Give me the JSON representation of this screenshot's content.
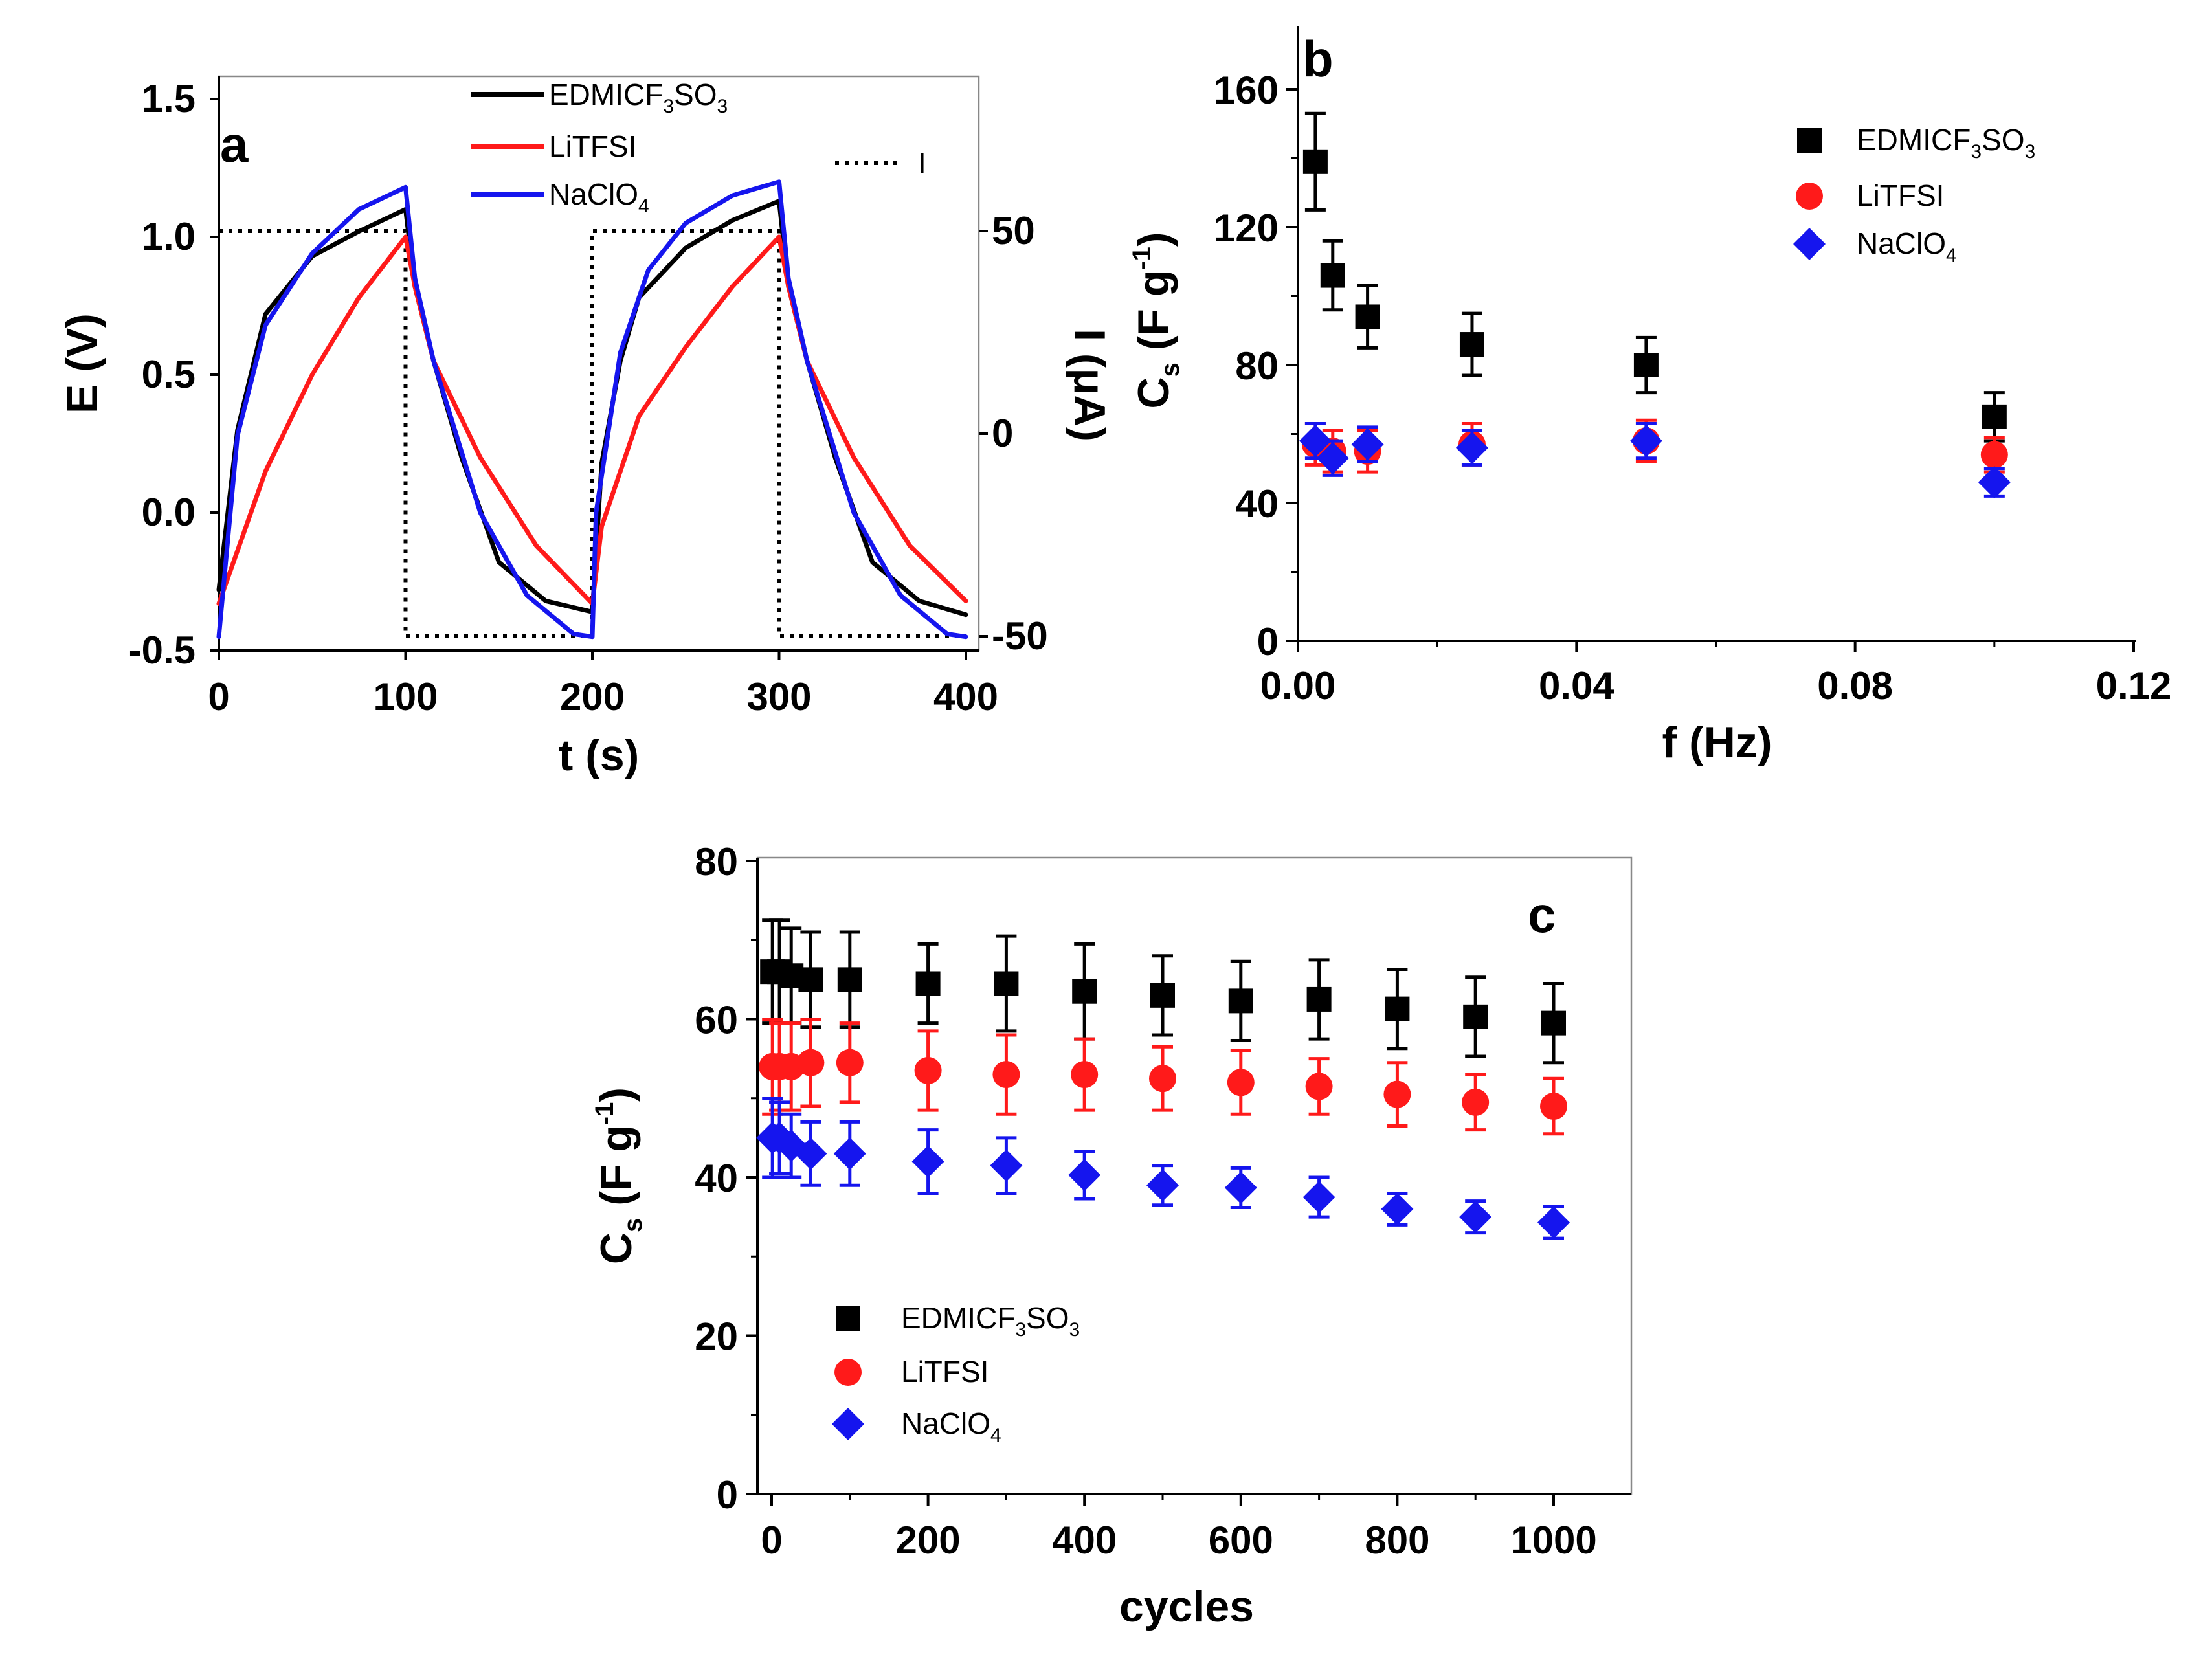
{
  "colors": {
    "black_series": "#000000",
    "red_series": "#ff1a1a",
    "blue_series": "#1515ee"
  },
  "chart_data": [
    {
      "panel": "a",
      "type": "line",
      "xlabel": "t (s)",
      "ylabel": "E (V)",
      "y2label": "I (μA)",
      "xlim": [
        0,
        400
      ],
      "ylim": [
        -0.5,
        1.5
      ],
      "y2lim": [
        -50,
        90
      ],
      "xticks": [
        "0",
        "100",
        "200",
        "300",
        "400"
      ],
      "yticks": [
        "-0.5",
        "0.0",
        "0.5",
        "1.0",
        "1.5"
      ],
      "y2ticks": [
        "-50",
        "0",
        "50"
      ],
      "legend": [
        {
          "name": "EDMICF",
          "sub1": "3",
          "mid": "SO",
          "sub2": "3",
          "color": "#000000"
        },
        {
          "name": "LiTFSI",
          "color": "#ff1a1a"
        },
        {
          "name": "NaClO",
          "sub1": "4",
          "color": "#1515ee"
        }
      ],
      "current_legend": "I",
      "current_series": {
        "name": "I",
        "x": [
          0,
          100,
          100,
          200,
          200,
          300,
          300,
          400
        ],
        "values": [
          50,
          50,
          -50,
          -50,
          50,
          50,
          -50,
          -50
        ]
      },
      "series": [
        {
          "name": "EDMICF3SO3",
          "color": "#000000",
          "x": [
            0,
            10,
            25,
            50,
            75,
            100,
            105,
            115,
            130,
            150,
            175,
            200,
            205,
            215,
            225,
            250,
            275,
            300,
            305,
            315,
            330,
            350,
            375,
            400
          ],
          "values": [
            -0.28,
            0.3,
            0.72,
            0.93,
            1.02,
            1.1,
            0.82,
            0.55,
            0.2,
            -0.18,
            -0.32,
            -0.36,
            0.18,
            0.55,
            0.78,
            0.96,
            1.06,
            1.13,
            0.82,
            0.55,
            0.2,
            -0.18,
            -0.32,
            -0.37
          ]
        },
        {
          "name": "LiTFSI",
          "color": "#ff1a1a",
          "x": [
            0,
            25,
            50,
            75,
            100,
            105,
            115,
            140,
            170,
            200,
            205,
            225,
            250,
            275,
            300,
            305,
            315,
            340,
            370,
            400
          ],
          "values": [
            -0.33,
            0.15,
            0.5,
            0.78,
            1.0,
            0.82,
            0.55,
            0.2,
            -0.12,
            -0.33,
            -0.05,
            0.35,
            0.6,
            0.82,
            1.0,
            0.82,
            0.55,
            0.2,
            -0.12,
            -0.32
          ]
        },
        {
          "name": "NaClO4",
          "color": "#1515ee",
          "x": [
            0,
            10,
            25,
            50,
            75,
            100,
            105,
            115,
            140,
            165,
            190,
            200,
            202,
            215,
            230,
            250,
            275,
            300,
            305,
            315,
            340,
            365,
            390,
            400
          ],
          "values": [
            -0.45,
            0.28,
            0.68,
            0.94,
            1.1,
            1.18,
            0.85,
            0.55,
            0.0,
            -0.3,
            -0.44,
            -0.45,
            0.0,
            0.58,
            0.88,
            1.05,
            1.15,
            1.2,
            0.85,
            0.55,
            0.0,
            -0.3,
            -0.44,
            -0.45
          ]
        }
      ]
    },
    {
      "panel": "b",
      "type": "scatter",
      "xlabel": "f (Hz)",
      "ylabel": "C",
      "ylabel_sub": "s",
      "ylabel_tail": "(F g",
      "ylabel_sup": "-1",
      "ylabel_close": ")",
      "xlim": [
        0,
        0.12
      ],
      "ylim": [
        0,
        180
      ],
      "xticks": [
        "0.00",
        "0.04",
        "0.08",
        "0.12"
      ],
      "yticks": [
        "0",
        "40",
        "80",
        "120",
        "160"
      ],
      "legend": [
        {
          "name": "EDMICF",
          "sub1": "3",
          "mid": "SO",
          "sub2": "3",
          "color": "#000000",
          "marker": "square"
        },
        {
          "name": "LiTFSI",
          "color": "#ff1a1a",
          "marker": "circle"
        },
        {
          "name": "NaClO",
          "sub1": "4",
          "color": "#1515ee",
          "marker": "diamond"
        }
      ],
      "series": [
        {
          "name": "EDMICF3SO3",
          "color": "#000000",
          "marker": "square",
          "x": [
            0.0025,
            0.005,
            0.01,
            0.025,
            0.05,
            0.1
          ],
          "values": [
            139,
            106,
            94,
            86,
            80,
            65
          ],
          "errors": [
            14,
            10,
            9,
            9,
            8,
            7
          ]
        },
        {
          "name": "LiTFSI",
          "color": "#ff1a1a",
          "marker": "circle",
          "x": [
            0.0025,
            0.005,
            0.01,
            0.025,
            0.05,
            0.1
          ],
          "values": [
            57,
            55,
            55,
            57,
            58,
            54
          ],
          "errors": [
            6,
            6,
            6,
            6,
            6,
            5
          ]
        },
        {
          "name": "NaClO4",
          "color": "#1515ee",
          "marker": "diamond",
          "x": [
            0.0025,
            0.005,
            0.01,
            0.025,
            0.05,
            0.1
          ],
          "values": [
            58,
            53,
            57,
            56,
            58,
            46
          ],
          "errors": [
            5,
            5,
            5,
            5,
            5,
            4
          ]
        }
      ]
    },
    {
      "panel": "c",
      "type": "scatter",
      "xlabel": "cycles",
      "ylabel": "C",
      "ylabel_sub": "s",
      "ylabel_tail": "(F g",
      "ylabel_sup": "-1",
      "ylabel_close": ")",
      "xlim": [
        -20,
        1100
      ],
      "ylim": [
        0,
        80
      ],
      "xticks": [
        "0",
        "200",
        "400",
        "600",
        "800",
        "1000"
      ],
      "yticks": [
        "0",
        "20",
        "40",
        "60",
        "80"
      ],
      "legend": [
        {
          "name": "EDMICF",
          "sub1": "3",
          "mid": "SO",
          "sub2": "3",
          "color": "#000000",
          "marker": "square"
        },
        {
          "name": "LiTFSI",
          "color": "#ff1a1a",
          "marker": "circle"
        },
        {
          "name": "NaClO",
          "sub1": "4",
          "color": "#1515ee",
          "marker": "diamond"
        }
      ],
      "series": [
        {
          "name": "EDMICF3SO3",
          "color": "#000000",
          "marker": "square",
          "x": [
            1,
            10,
            25,
            50,
            100,
            200,
            300,
            400,
            500,
            600,
            700,
            800,
            900,
            1000
          ],
          "values": [
            66,
            66,
            65.5,
            65,
            65,
            64.5,
            64.5,
            63.5,
            63,
            62.3,
            62.5,
            61.3,
            60.3,
            59.5
          ],
          "errors": [
            6.5,
            6.5,
            6,
            6,
            6,
            5,
            6,
            6,
            5,
            5,
            5,
            5,
            5,
            5
          ]
        },
        {
          "name": "LiTFSI",
          "color": "#ff1a1a",
          "marker": "circle",
          "x": [
            1,
            10,
            25,
            50,
            100,
            200,
            300,
            400,
            500,
            600,
            700,
            800,
            900,
            1000
          ],
          "values": [
            54,
            54,
            54,
            54.5,
            54.5,
            53.5,
            53,
            53,
            52.5,
            52,
            51.5,
            50.5,
            49.5,
            49
          ],
          "errors": [
            6,
            5.5,
            5.5,
            5.5,
            5,
            5,
            5,
            4.5,
            4,
            4,
            3.5,
            4,
            3.5,
            3.5
          ]
        },
        {
          "name": "NaClO4",
          "color": "#1515ee",
          "marker": "diamond",
          "x": [
            1,
            10,
            25,
            50,
            100,
            200,
            300,
            400,
            500,
            600,
            700,
            800,
            900,
            1000
          ],
          "values": [
            45,
            45,
            44,
            43,
            43,
            42,
            41.5,
            40.3,
            39,
            38.7,
            37.5,
            36,
            35,
            34.3
          ],
          "errors": [
            5,
            4.5,
            4,
            4,
            4,
            4,
            3.5,
            3,
            2.5,
            2.5,
            2.5,
            2,
            2,
            2
          ]
        }
      ]
    }
  ]
}
